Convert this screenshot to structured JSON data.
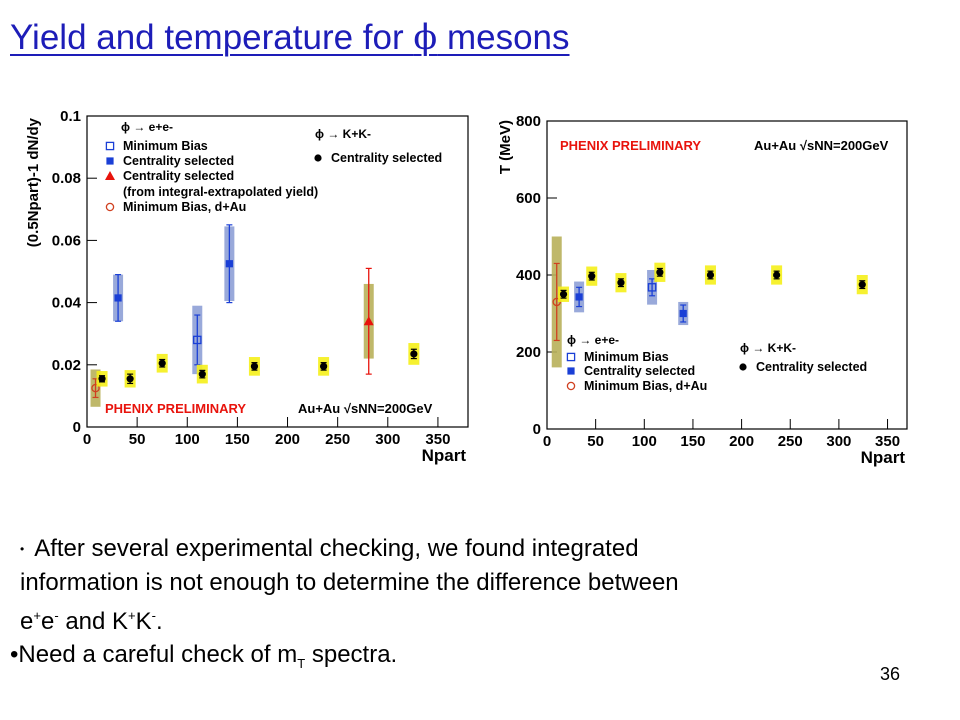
{
  "slide": {
    "title_before": "Yield and temperature for ",
    "title_phi": "ϕ",
    "title_after": " mesons",
    "page_number": "36"
  },
  "bullets": {
    "b1_line1": "After several experimental checking, we found integrated",
    "b1_line2": "information is not enough to determine the difference between",
    "b1_ee": "e",
    "b1_ee_sup1": "+",
    "b1_ee_e": "e",
    "b1_ee_sup2": "-",
    "b1_and": " and K",
    "b1_k_sup1": "+",
    "b1_k": "K",
    "b1_k_sup2": "-",
    "b1_end": ".",
    "b2_start": "Need a careful check of m",
    "b2_sub": "T",
    "b2_end": " spectra."
  },
  "chart_data": [
    {
      "type": "scatter",
      "ylabel": "(0.5Npart)-1 dN/dy",
      "xlabel": "Npart",
      "xlim": [
        0,
        380
      ],
      "ylim": [
        0,
        0.1
      ],
      "xticks": [
        "0",
        "50",
        "100",
        "150",
        "200",
        "250",
        "300",
        "350"
      ],
      "yticks": [
        "0",
        "0.02",
        "0.04",
        "0.06",
        "0.08",
        "0.1"
      ],
      "legend_ee_header": "ϕ → e+e-",
      "legend_kk_header": "ϕ → K+K-",
      "legend": [
        "Minimum Bias",
        "Centrality selected",
        "Centrality selected",
        "(from integral-extrapolated yield)",
        "Minimum Bias, d+Au",
        "Centrality selected"
      ],
      "annotation_left": "PHENIX PRELIMINARY",
      "annotation_right": "Au+Au √sNN=200GeV",
      "series": [
        {
          "name": "Minimum Bias",
          "marker": "open-square",
          "color": "#1a3fd6",
          "points": [
            {
              "x": 110,
              "y": 0.028,
              "err": 0.008,
              "sys": 0.011
            }
          ]
        },
        {
          "name": "Centrality selected",
          "marker": "filled-square",
          "color": "#1a3fd6",
          "points": [
            {
              "x": 31,
              "y": 0.0415,
              "err": 0.0075,
              "sys": 0.0075
            },
            {
              "x": 142,
              "y": 0.0525,
              "err": 0.0125,
              "sys": 0.012
            }
          ]
        },
        {
          "name": "Centrality selected (from integral-extrapolated yield)",
          "marker": "filled-triangle",
          "color": "#e8130c",
          "points": [
            {
              "x": 281,
              "y": 0.034,
              "err": 0.017,
              "sys": 0.012
            }
          ]
        },
        {
          "name": "Minimum Bias, d+Au",
          "marker": "open-circle",
          "color": "#d04020",
          "points": [
            {
              "x": 8.5,
              "y": 0.0125,
              "err": 0.003,
              "sys": 0.006
            }
          ]
        },
        {
          "name": "Centrality selected",
          "marker": "filled-circle",
          "color": "#000000",
          "points": [
            {
              "x": 15,
              "y": 0.0155,
              "err": 0.001,
              "sys": 0.0025
            },
            {
              "x": 43,
              "y": 0.0155,
              "err": 0.0015,
              "sys": 0.0028
            },
            {
              "x": 75,
              "y": 0.0205,
              "err": 0.0012,
              "sys": 0.003
            },
            {
              "x": 115,
              "y": 0.017,
              "err": 0.0012,
              "sys": 0.003
            },
            {
              "x": 167,
              "y": 0.0195,
              "err": 0.0012,
              "sys": 0.003
            },
            {
              "x": 236,
              "y": 0.0195,
              "err": 0.0012,
              "sys": 0.003
            },
            {
              "x": 326,
              "y": 0.0235,
              "err": 0.0015,
              "sys": 0.0035
            }
          ]
        }
      ]
    },
    {
      "type": "scatter",
      "ylabel": "T (MeV)",
      "xlabel": "Npart",
      "xlim": [
        0,
        370
      ],
      "ylim": [
        0,
        800
      ],
      "xticks": [
        "0",
        "50",
        "100",
        "150",
        "200",
        "250",
        "300",
        "350"
      ],
      "yticks": [
        "0",
        "200",
        "400",
        "600",
        "800"
      ],
      "legend_ee_header": "ϕ → e+e-",
      "legend_kk_header": "ϕ → K+K-",
      "legend": [
        "Minimum Bias",
        "Centrality selected",
        "Minimum Bias, d+Au",
        "Centrality selected"
      ],
      "annotation_left": "PHENIX PRELIMINARY",
      "annotation_right": "Au+Au √sNN=200GeV",
      "series": [
        {
          "name": "Minimum Bias",
          "marker": "open-square",
          "color": "#1a3fd6",
          "points": [
            {
              "x": 108,
              "y": 368,
              "err": 22,
              "sys": 45
            }
          ]
        },
        {
          "name": "Centrality selected",
          "marker": "filled-square",
          "color": "#1a3fd6",
          "points": [
            {
              "x": 33,
              "y": 343,
              "err": 25,
              "sys": 40
            },
            {
              "x": 140,
              "y": 300,
              "err": 22,
              "sys": 30
            }
          ]
        },
        {
          "name": "Minimum Bias, d+Au",
          "marker": "open-circle",
          "color": "#d04020",
          "points": [
            {
              "x": 10,
              "y": 330,
              "err": 100,
              "sys": 170
            }
          ]
        },
        {
          "name": "Centrality selected",
          "marker": "filled-circle",
          "color": "#000000",
          "points": [
            {
              "x": 17,
              "y": 350,
              "err": 10,
              "sys": 20
            },
            {
              "x": 46,
              "y": 397,
              "err": 10,
              "sys": 25
            },
            {
              "x": 76,
              "y": 380,
              "err": 10,
              "sys": 25
            },
            {
              "x": 116,
              "y": 407,
              "err": 10,
              "sys": 25
            },
            {
              "x": 168,
              "y": 400,
              "err": 10,
              "sys": 25
            },
            {
              "x": 236,
              "y": 400,
              "err": 10,
              "sys": 25
            },
            {
              "x": 324,
              "y": 375,
              "err": 10,
              "sys": 25
            }
          ]
        }
      ]
    }
  ]
}
